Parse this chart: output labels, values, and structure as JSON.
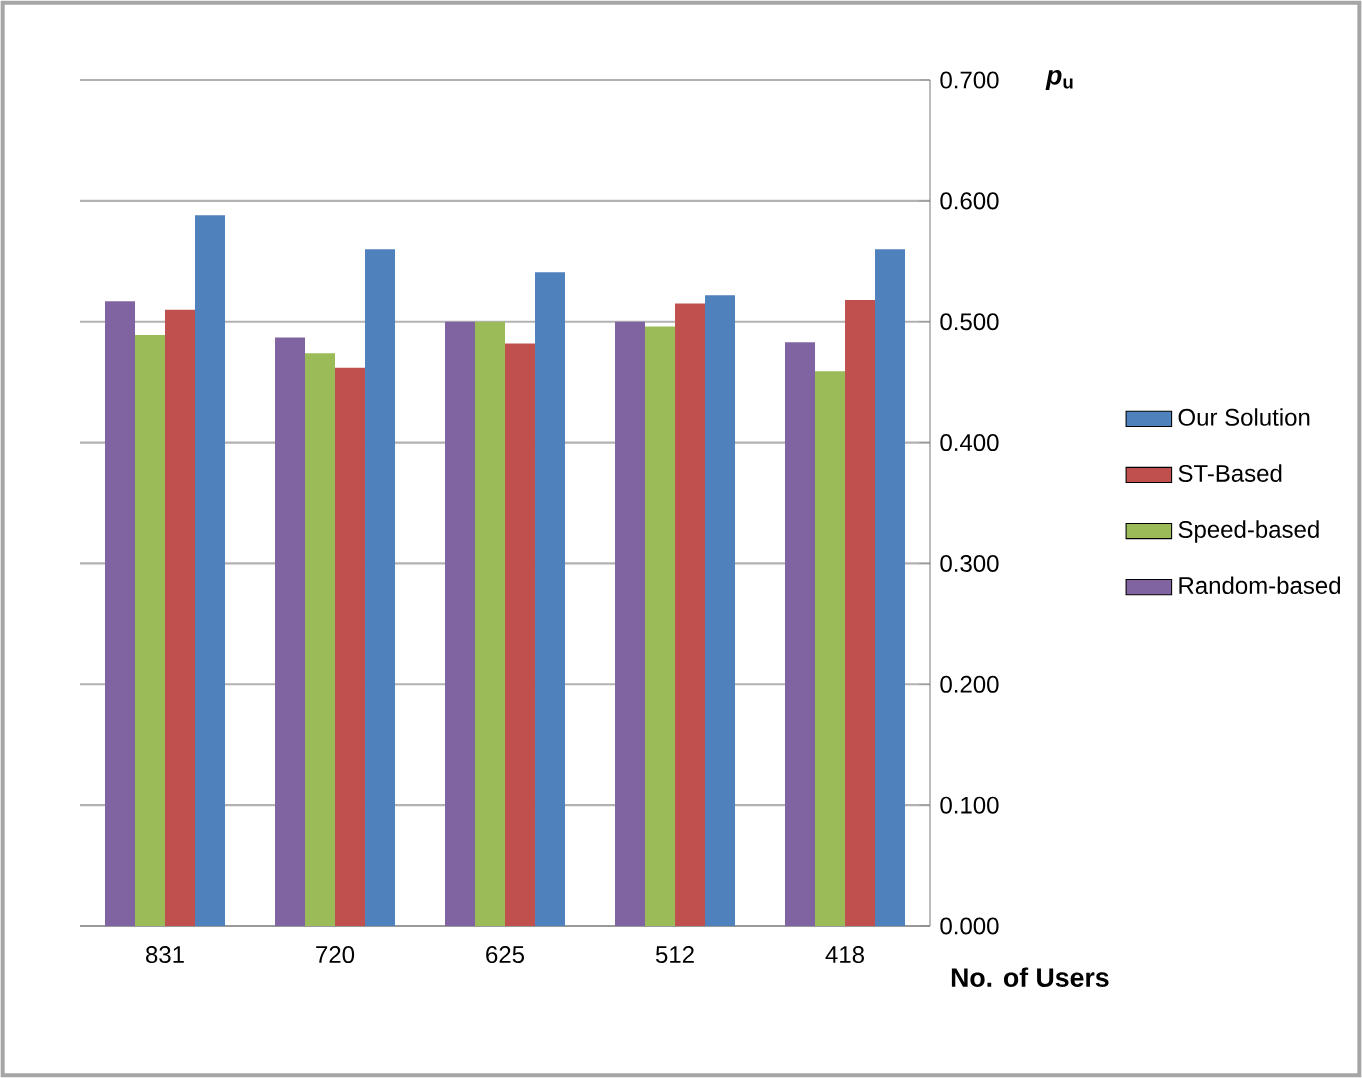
{
  "chart_data": {
    "type": "bar",
    "xlabel": "No. of Users",
    "ylabel": "*p*$_{u}$",
    "categories": [
      "831",
      "720",
      "625",
      "512",
      "418"
    ],
    "series": [
      {
        "name": "Random-based",
        "color": "#8064a2",
        "values": [
          0.517,
          0.487,
          0.5,
          0.5,
          0.483
        ]
      },
      {
        "name": "Speed-based",
        "color": "#9bbb59",
        "values": [
          0.489,
          0.474,
          0.5,
          0.496,
          0.459
        ]
      },
      {
        "name": "ST-Based",
        "color": "#c0504d",
        "values": [
          0.51,
          0.462,
          0.482,
          0.515,
          0.518
        ]
      },
      {
        "name": "Our Solution",
        "color": "#4f81bd",
        "values": [
          0.588,
          0.56,
          0.541,
          0.522,
          0.56
        ]
      }
    ],
    "ylim": [
      0,
      0.7
    ],
    "yticks": [
      {
        "value": 0,
        "label": "0.000"
      },
      {
        "value": 0.1,
        "label": "0.100"
      },
      {
        "value": 0.2,
        "label": "0.200"
      },
      {
        "value": 0.3,
        "label": "0.300"
      },
      {
        "value": 0.4,
        "label": "0.400"
      },
      {
        "value": 0.5,
        "label": "0.500"
      },
      {
        "value": 0.6,
        "label": "0.600"
      },
      {
        "value": 0.7,
        "label": "0.700"
      }
    ],
    "grid": "y",
    "legend": "right"
  }
}
